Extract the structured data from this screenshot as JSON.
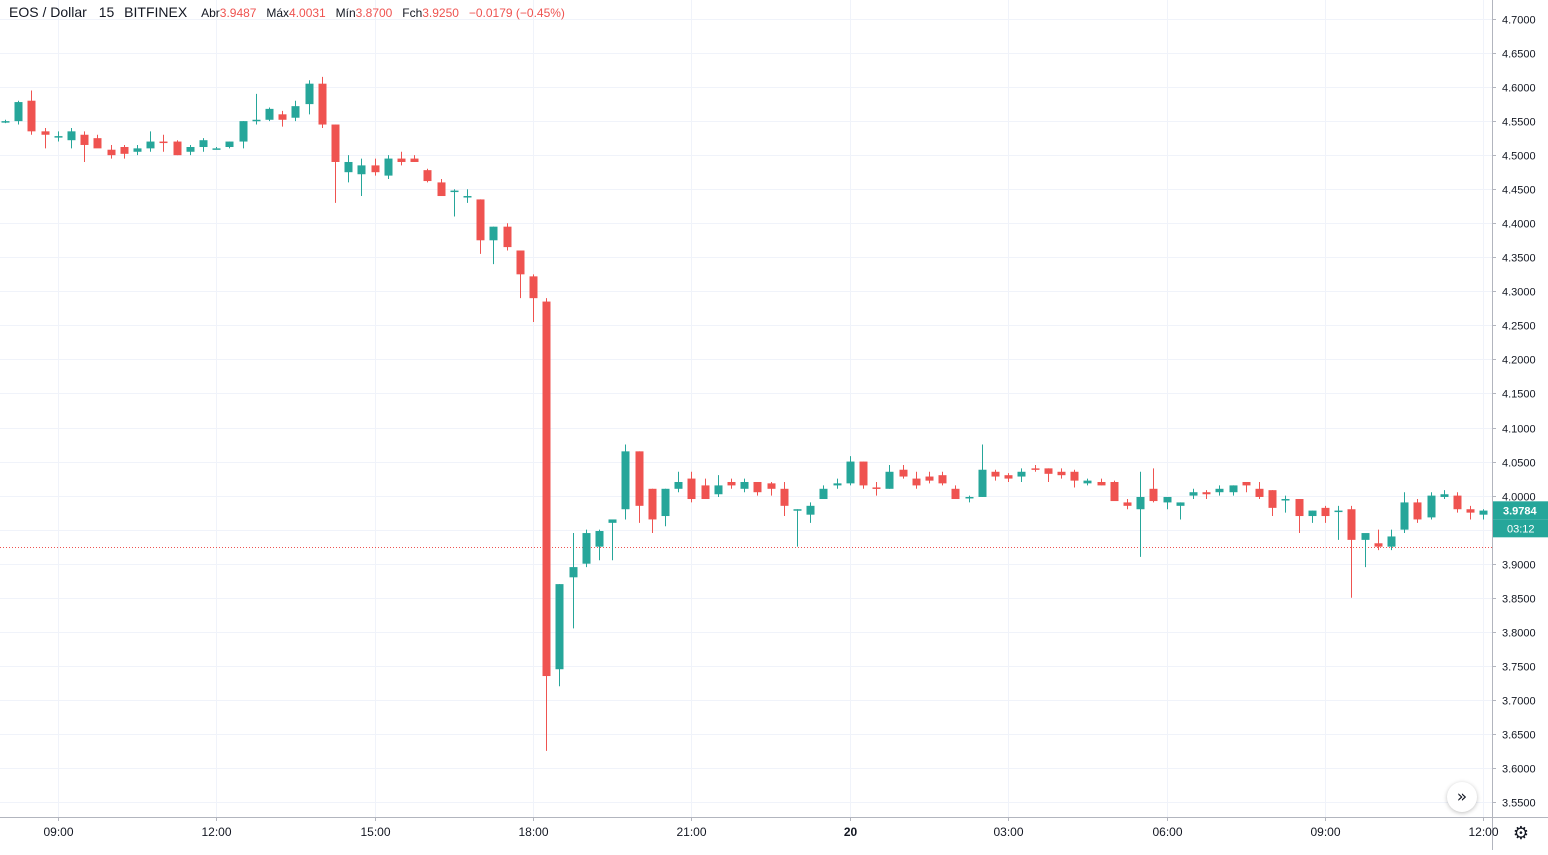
{
  "legend": {
    "symbol": "EOS / Dollar",
    "interval": "15",
    "exchange": "BITFINEX",
    "open_label": "Abr",
    "open_value": "3.9487",
    "high_label": "Máx",
    "high_value": "4.0031",
    "low_label": "Mín",
    "low_value": "3.8700",
    "close_label": "Fch",
    "close_value": "3.9250",
    "change": "−0.0179 (−0.45%)"
  },
  "price_labels": {
    "last_price": "3.9784",
    "countdown": "03:12"
  },
  "colors": {
    "up": "#26a69a",
    "down": "#ef5350",
    "grid": "#f0f3fa",
    "axis_text": "#131722",
    "price_line": "#ef5350"
  },
  "icons": {
    "scroll_right": "double-chevron-right-icon",
    "settings": "gear-icon"
  },
  "chart_data": {
    "type": "candlestick",
    "ylim": [
      3.525,
      4.715
    ],
    "y_ticks": [
      "4.7000",
      "4.6500",
      "4.6000",
      "4.5500",
      "4.5000",
      "4.4500",
      "4.4000",
      "4.3500",
      "4.3000",
      "4.2500",
      "4.2000",
      "4.1500",
      "4.1000",
      "4.0500",
      "4.0000",
      "3.9500",
      "3.9000",
      "3.8500",
      "3.8000",
      "3.7500",
      "3.7000",
      "3.6500",
      "3.6000",
      "3.5500"
    ],
    "x_ticks": [
      {
        "index": 2,
        "label": "09:00"
      },
      {
        "index": 14,
        "label": "12:00"
      },
      {
        "index": 26,
        "label": "15:00"
      },
      {
        "index": 38,
        "label": "18:00"
      },
      {
        "index": 50,
        "label": "21:00"
      },
      {
        "index": 62,
        "label": "20"
      },
      {
        "index": 74,
        "label": "03:00"
      },
      {
        "index": 86,
        "label": "06:00"
      },
      {
        "index": 98,
        "label": "09:00"
      },
      {
        "index": 110,
        "label": "12:00"
      }
    ],
    "horizontal_line": 3.925,
    "candles": [
      [
        4.55,
        4.552,
        4.547,
        4.55
      ],
      [
        4.55,
        4.58,
        4.545,
        4.578
      ],
      [
        4.58,
        4.595,
        4.53,
        4.535
      ],
      [
        4.535,
        4.54,
        4.51,
        4.53
      ],
      [
        4.528,
        4.535,
        4.52,
        4.528
      ],
      [
        4.522,
        4.54,
        4.51,
        4.535
      ],
      [
        4.53,
        4.535,
        4.49,
        4.515
      ],
      [
        4.525,
        4.53,
        4.515,
        4.51
      ],
      [
        4.508,
        4.515,
        4.495,
        4.5
      ],
      [
        4.512,
        4.515,
        4.495,
        4.502
      ],
      [
        4.505,
        4.515,
        4.5,
        4.51
      ],
      [
        4.51,
        4.535,
        4.505,
        4.52
      ],
      [
        4.52,
        4.53,
        4.505,
        4.518
      ],
      [
        4.52,
        4.522,
        4.5,
        4.5
      ],
      [
        4.505,
        4.515,
        4.5,
        4.512
      ],
      [
        4.512,
        4.525,
        4.505,
        4.522
      ],
      [
        4.51,
        4.512,
        4.51,
        4.51
      ],
      [
        4.512,
        4.52,
        4.51,
        4.52
      ],
      [
        4.52,
        4.55,
        4.51,
        4.55
      ],
      [
        4.55,
        4.59,
        4.545,
        4.552
      ],
      [
        4.552,
        4.57,
        4.55,
        4.568
      ],
      [
        4.56,
        4.565,
        4.542,
        4.552
      ],
      [
        4.555,
        4.58,
        4.55,
        4.572
      ],
      [
        4.575,
        4.61,
        4.56,
        4.605
      ],
      [
        4.605,
        4.615,
        4.54,
        4.545
      ],
      [
        4.545,
        4.545,
        4.43,
        4.49
      ],
      [
        4.475,
        4.5,
        4.46,
        4.49
      ],
      [
        4.472,
        4.495,
        4.44,
        4.485
      ],
      [
        4.485,
        4.495,
        4.47,
        4.475
      ],
      [
        4.47,
        4.5,
        4.465,
        4.495
      ],
      [
        4.495,
        4.505,
        4.485,
        4.49
      ],
      [
        4.495,
        4.5,
        4.49,
        4.49
      ],
      [
        4.478,
        4.48,
        4.46,
        4.462
      ],
      [
        4.46,
        4.465,
        4.445,
        4.44
      ],
      [
        4.448,
        4.45,
        4.41,
        4.448
      ],
      [
        4.438,
        4.45,
        4.43,
        4.44
      ],
      [
        4.435,
        4.435,
        4.355,
        4.375
      ],
      [
        4.375,
        4.395,
        4.34,
        4.395
      ],
      [
        4.395,
        4.4,
        4.36,
        4.365
      ],
      [
        4.36,
        4.36,
        4.29,
        4.325
      ],
      [
        4.322,
        4.325,
        4.255,
        4.29
      ],
      [
        4.285,
        4.29,
        3.625,
        3.735
      ],
      [
        3.745,
        3.87,
        3.72,
        3.87
      ],
      [
        3.88,
        3.945,
        3.805,
        3.895
      ],
      [
        3.9,
        3.95,
        3.895,
        3.945
      ],
      [
        3.925,
        3.95,
        3.905,
        3.948
      ],
      [
        3.96,
        3.965,
        3.905,
        3.965
      ],
      [
        3.98,
        4.075,
        3.965,
        4.065
      ],
      [
        4.065,
        4.065,
        3.96,
        3.985
      ],
      [
        4.01,
        4.01,
        3.945,
        3.965
      ],
      [
        3.97,
        4.01,
        3.955,
        4.01
      ],
      [
        4.01,
        4.035,
        4.005,
        4.02
      ],
      [
        4.025,
        4.035,
        3.99,
        3.995
      ],
      [
        4.015,
        4.025,
        4.0,
        3.995
      ],
      [
        4.002,
        4.03,
        3.998,
        4.015
      ],
      [
        4.02,
        4.025,
        4.01,
        4.015
      ],
      [
        4.01,
        4.025,
        4.005,
        4.02
      ],
      [
        4.02,
        4.02,
        4.0,
        4.005
      ],
      [
        4.018,
        4.02,
        4.0,
        4.01
      ],
      [
        4.01,
        4.02,
        3.97,
        3.985
      ],
      [
        3.98,
        3.98,
        3.925,
        3.98
      ],
      [
        3.972,
        3.99,
        3.96,
        3.985
      ],
      [
        3.995,
        4.015,
        3.995,
        4.01
      ],
      [
        4.015,
        4.025,
        4.01,
        4.018
      ],
      [
        4.018,
        4.058,
        4.015,
        4.05
      ],
      [
        4.05,
        4.05,
        4.01,
        4.015
      ],
      [
        4.012,
        4.02,
        4.0,
        4.01
      ],
      [
        4.01,
        4.045,
        4.01,
        4.035
      ],
      [
        4.038,
        4.045,
        4.025,
        4.028
      ],
      [
        4.025,
        4.035,
        4.01,
        4.015
      ],
      [
        4.028,
        4.035,
        4.018,
        4.022
      ],
      [
        4.03,
        4.035,
        4.015,
        4.018
      ],
      [
        4.01,
        4.015,
        3.995,
        3.995
      ],
      [
        3.998,
        4.0,
        3.99,
        3.998
      ],
      [
        3.998,
        4.075,
        3.998,
        4.038
      ],
      [
        4.035,
        4.038,
        4.022,
        4.028
      ],
      [
        4.03,
        4.033,
        4.02,
        4.025
      ],
      [
        4.028,
        4.04,
        4.02,
        4.035
      ],
      [
        4.04,
        4.045,
        4.035,
        4.038
      ],
      [
        4.04,
        4.04,
        4.02,
        4.032
      ],
      [
        4.035,
        4.04,
        4.025,
        4.03
      ],
      [
        4.035,
        4.038,
        4.012,
        4.022
      ],
      [
        4.018,
        4.025,
        4.015,
        4.022
      ],
      [
        4.02,
        4.025,
        4.015,
        4.015
      ],
      [
        4.02,
        4.022,
        3.995,
        3.992
      ],
      [
        3.99,
        3.995,
        3.98,
        3.985
      ],
      [
        3.98,
        4.035,
        3.91,
        3.998
      ],
      [
        4.01,
        4.04,
        3.99,
        3.992
      ],
      [
        3.99,
        3.995,
        3.98,
        3.998
      ],
      [
        3.985,
        3.99,
        3.965,
        3.99
      ],
      [
        4.0,
        4.01,
        3.995,
        4.005
      ],
      [
        4.005,
        4.008,
        3.995,
        4.002
      ],
      [
        4.005,
        4.015,
        4.0,
        4.01
      ],
      [
        4.005,
        4.015,
        4.0,
        4.015
      ],
      [
        4.02,
        4.02,
        4.005,
        4.015
      ],
      [
        4.01,
        4.02,
        3.995,
        3.998
      ],
      [
        4.008,
        4.008,
        3.97,
        3.982
      ],
      [
        3.995,
        4.0,
        3.975,
        3.995
      ],
      [
        3.995,
        3.995,
        3.945,
        3.97
      ],
      [
        3.97,
        3.978,
        3.96,
        3.978
      ],
      [
        3.982,
        3.985,
        3.96,
        3.97
      ],
      [
        3.978,
        3.985,
        3.935,
        3.978
      ],
      [
        3.98,
        3.985,
        3.85,
        3.935
      ],
      [
        3.935,
        3.94,
        3.895,
        3.945
      ],
      [
        3.93,
        3.95,
        3.92,
        3.925
      ],
      [
        3.925,
        3.95,
        3.92,
        3.94
      ],
      [
        3.95,
        4.005,
        3.945,
        3.99
      ],
      [
        3.99,
        3.995,
        3.96,
        3.965
      ],
      [
        3.968,
        4.005,
        3.965,
        4.0
      ],
      [
        3.998,
        4.008,
        3.995,
        4.002
      ],
      [
        4.0,
        4.005,
        3.975,
        3.98
      ],
      [
        3.98,
        3.985,
        3.965,
        3.975
      ],
      [
        3.972,
        3.98,
        3.965,
        3.978
      ],
      [
        3.975,
        3.985,
        3.968,
        3.98
      ],
      [
        3.98,
        3.99,
        3.97,
        3.985
      ]
    ]
  }
}
